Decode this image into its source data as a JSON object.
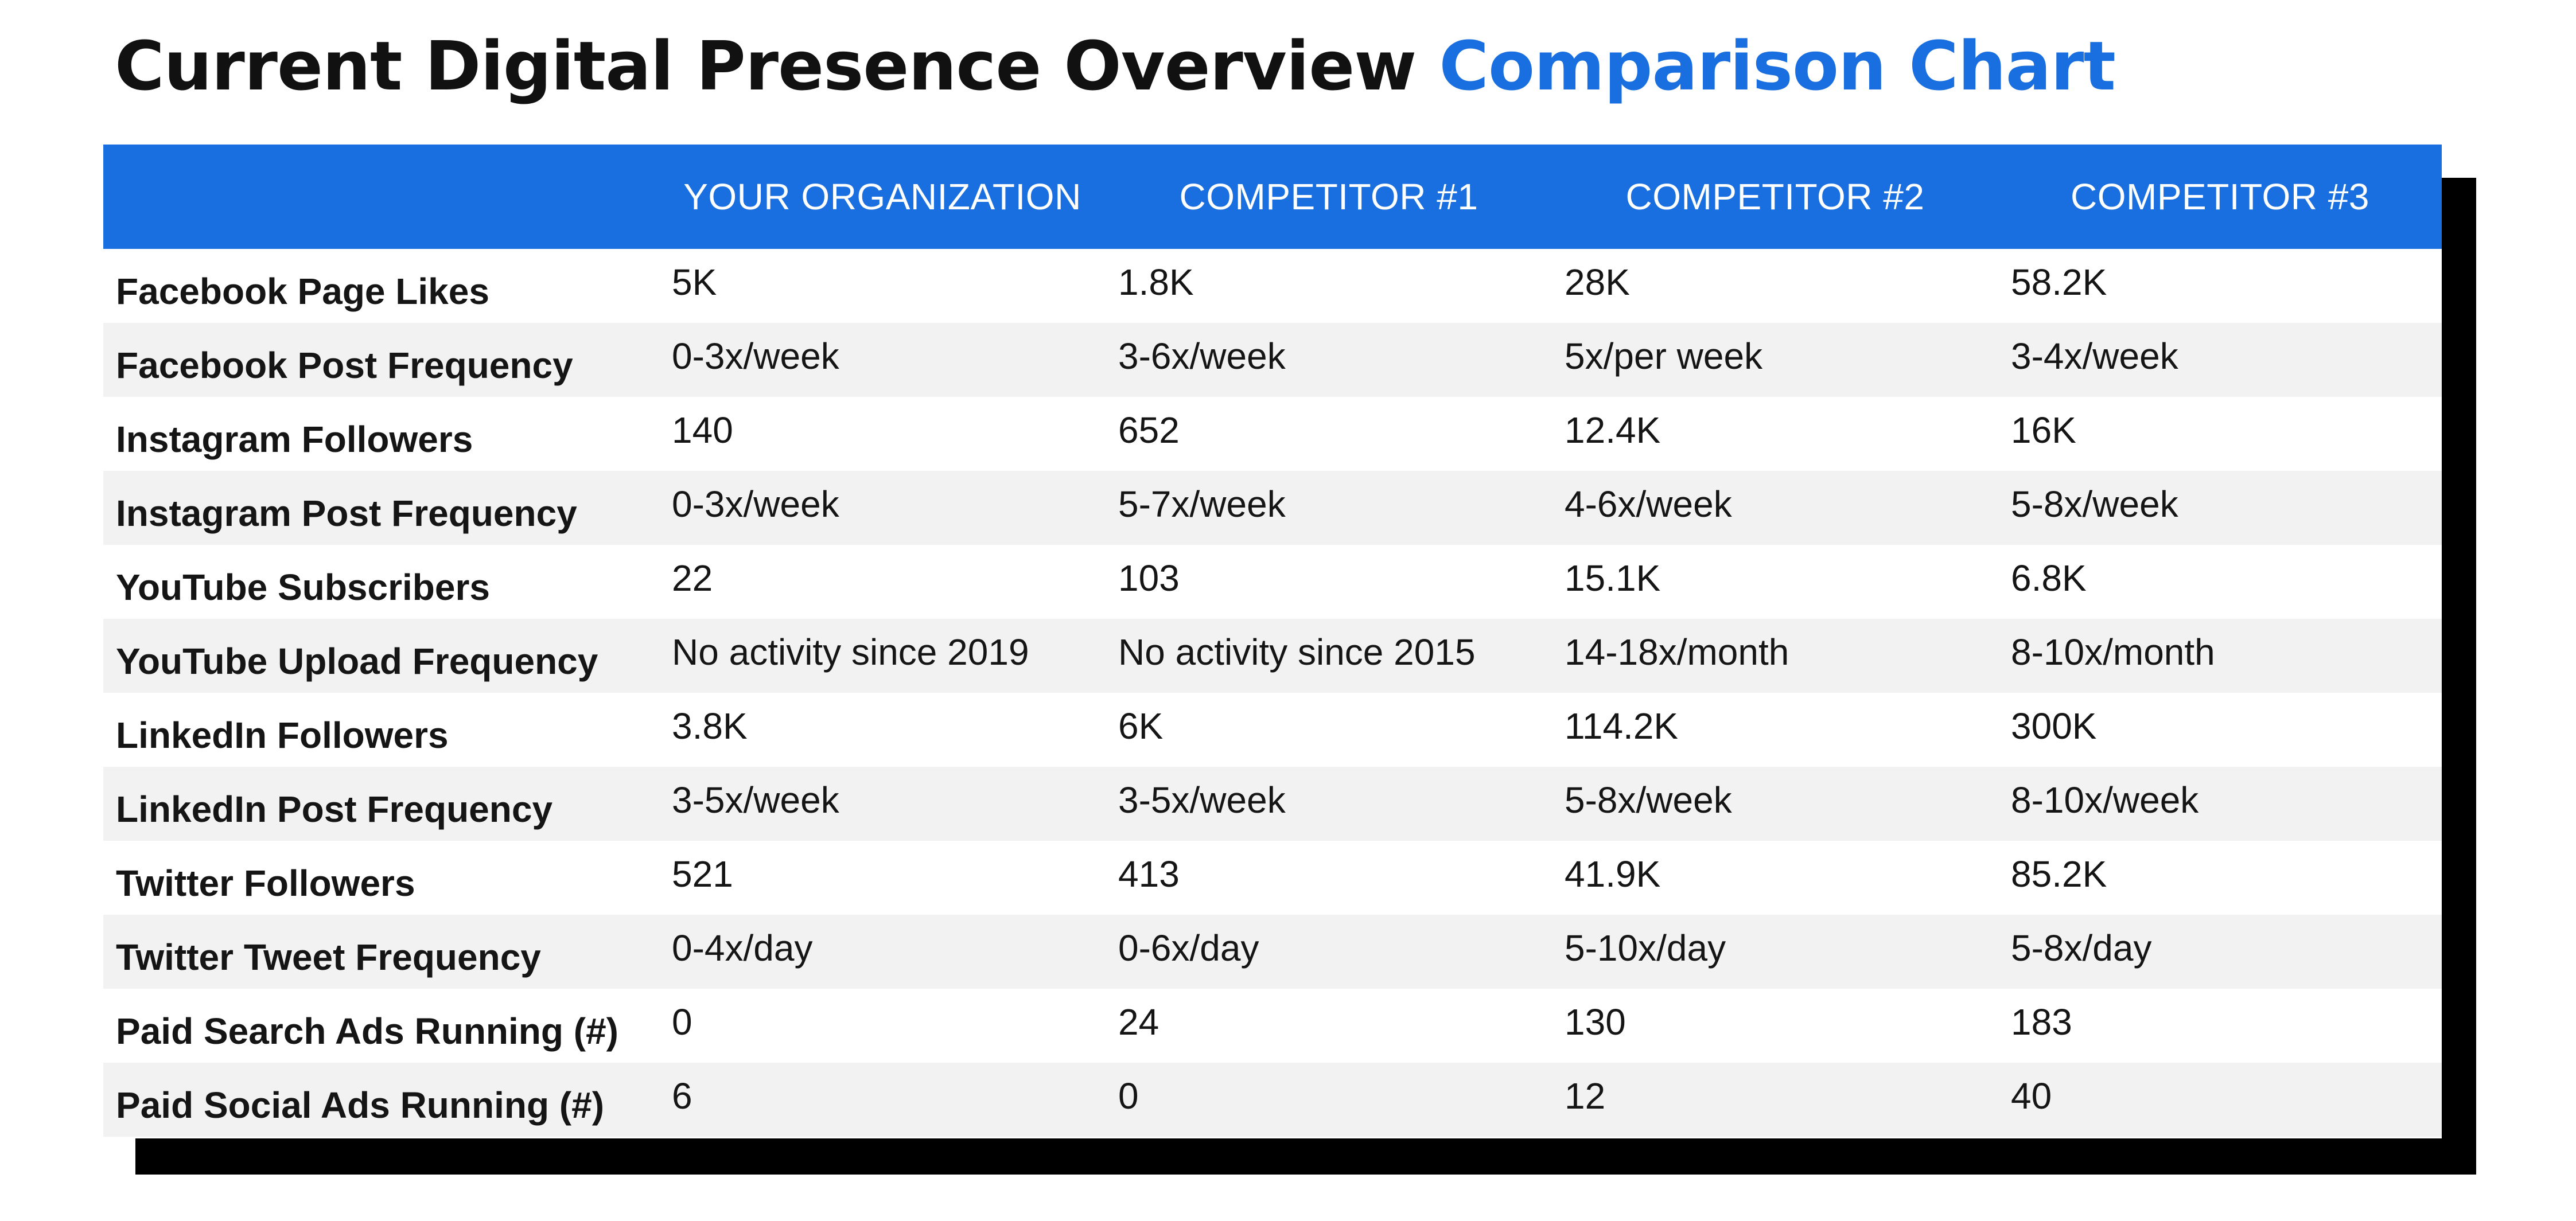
{
  "title": {
    "main": "Current Digital Presence Overview",
    "accent": "Comparison Chart"
  },
  "colors": {
    "accent": "#1a6fe0",
    "header_text": "#ffffff",
    "row_stripe": "#f2f2f2",
    "shadow": "#000000"
  },
  "chart_data": {
    "type": "table",
    "columns": [
      "",
      "YOUR ORGANIZATION",
      "COMPETITOR #1",
      "COMPETITOR #2",
      "COMPETITOR #3"
    ],
    "rows": [
      {
        "label": "Facebook Page Likes",
        "values": [
          "5K",
          "1.8K",
          "28K",
          "58.2K"
        ]
      },
      {
        "label": "Facebook Post Frequency",
        "values": [
          "0-3x/week",
          "3-6x/week",
          "5x/per week",
          "3-4x/week"
        ]
      },
      {
        "label": "Instagram Followers",
        "values": [
          "140",
          "652",
          "12.4K",
          "16K"
        ]
      },
      {
        "label": "Instagram Post Frequency",
        "values": [
          "0-3x/week",
          "5-7x/week",
          "4-6x/week",
          "5-8x/week"
        ]
      },
      {
        "label": "YouTube Subscribers",
        "values": [
          "22",
          "103",
          "15.1K",
          "6.8K"
        ]
      },
      {
        "label": "YouTube Upload Frequency",
        "values": [
          "No activity since 2019",
          "No activity since 2015",
          "14-18x/month",
          "8-10x/month"
        ]
      },
      {
        "label": "LinkedIn Followers",
        "values": [
          "3.8K",
          "6K",
          "114.2K",
          "300K"
        ]
      },
      {
        "label": "LinkedIn Post Frequency",
        "values": [
          "3-5x/week",
          "3-5x/week",
          "5-8x/week",
          "8-10x/week"
        ]
      },
      {
        "label": "Twitter Followers",
        "values": [
          "521",
          "413",
          "41.9K",
          "85.2K"
        ]
      },
      {
        "label": "Twitter Tweet Frequency",
        "values": [
          "0-4x/day",
          "0-6x/day",
          "5-10x/day",
          "5-8x/day"
        ]
      },
      {
        "label": "Paid Search Ads Running (#)",
        "values": [
          "0",
          "24",
          "130",
          "183"
        ]
      },
      {
        "label": "Paid Social Ads Running (#)",
        "values": [
          "6",
          "0",
          "12",
          "40"
        ]
      }
    ]
  }
}
